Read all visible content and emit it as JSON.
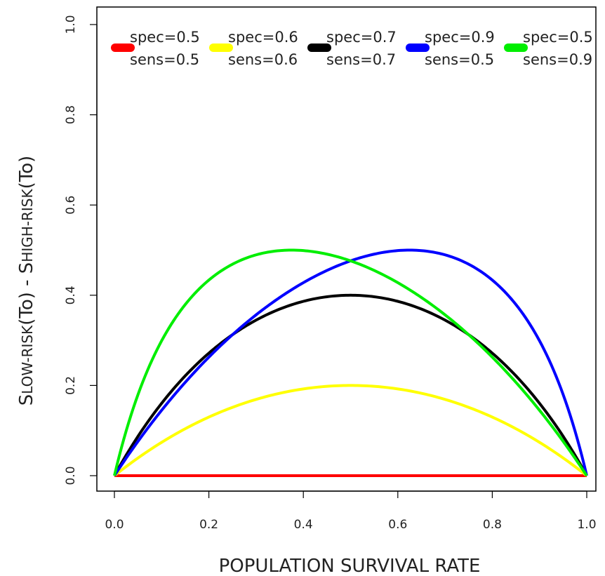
{
  "chart_data": {
    "type": "line",
    "title": "",
    "xlabel": "POPULATION SURVIVAL RATE",
    "ylabel": {
      "s1": "S",
      "sub1": "LOW-RISK",
      "mid": "(To) - S",
      "sub2": "HIGH-RISK",
      "end": "(To)"
    },
    "xlim": [
      0,
      1
    ],
    "ylim": [
      0,
      1
    ],
    "xticks": [
      "0.0",
      "0.2",
      "0.4",
      "0.6",
      "0.8",
      "1.0"
    ],
    "yticks": [
      "0.0",
      "0.2",
      "0.4",
      "0.6",
      "0.8",
      "1.0"
    ],
    "grid": false,
    "legend_position": "top",
    "series": [
      {
        "spec": 0.5,
        "sens": 0.5,
        "spec_label": "spec=0.5",
        "sens_label": "sens=0.5",
        "color": "#ff0000"
      },
      {
        "spec": 0.6,
        "sens": 0.6,
        "spec_label": "spec=0.6",
        "sens_label": "sens=0.6",
        "color": "#ffff00"
      },
      {
        "spec": 0.7,
        "sens": 0.7,
        "spec_label": "spec=0.7",
        "sens_label": "sens=0.7",
        "color": "#000000"
      },
      {
        "spec": 0.9,
        "sens": 0.5,
        "spec_label": "spec=0.9",
        "sens_label": "sens=0.5",
        "color": "#0000ff"
      },
      {
        "spec": 0.5,
        "sens": 0.9,
        "spec_label": "spec=0.5",
        "sens_label": "sens=0.9",
        "color": "#00ee00"
      }
    ]
  }
}
